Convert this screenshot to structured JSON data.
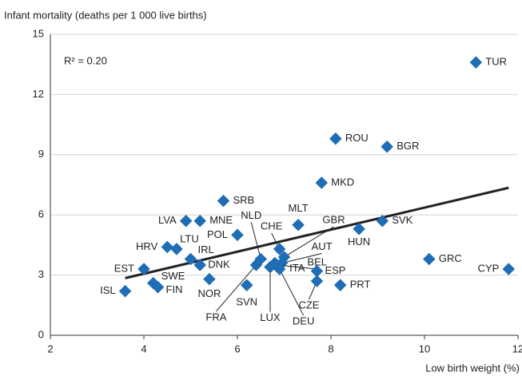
{
  "chart_data": {
    "type": "scatter",
    "y_label": "Infant mortality (deaths per 1 000 live births)",
    "x_label": "Low birth weight (%)",
    "annotation": "R² = 0.20",
    "color": "#1f6db5",
    "trend_color": "#222222",
    "xlim": [
      2,
      12
    ],
    "xticks": [
      2,
      4,
      6,
      8,
      10,
      12
    ],
    "ylim": [
      0,
      15
    ],
    "yticks": [
      0,
      3,
      6,
      9,
      12,
      15
    ],
    "grid": true,
    "labels": [
      "TUR",
      "ROU",
      "BGR",
      "MKD",
      "SRB",
      "LVA",
      "MNE",
      "MLT",
      "SVK",
      "POL",
      "HUN",
      "HRV",
      "LTU",
      "NLD",
      "CHE",
      "GBR",
      "AUT",
      "BEL",
      "IRL",
      "DNK",
      "EST",
      "SWE",
      "FIN",
      "ISL",
      "NOR",
      "SVN",
      "FRA",
      "LUX",
      "DEU",
      "ITA",
      "CZE",
      "ESP",
      "PRT",
      "GRC",
      "CYP"
    ],
    "x": [
      11.1,
      8.1,
      9.2,
      7.8,
      5.7,
      4.9,
      5.2,
      7.3,
      9.1,
      6.0,
      8.6,
      4.5,
      4.7,
      6.5,
      6.9,
      7.0,
      6.95,
      6.85,
      5.0,
      5.2,
      4.0,
      4.2,
      4.3,
      3.6,
      5.4,
      6.2,
      6.4,
      6.7,
      6.9,
      6.8,
      7.7,
      7.7,
      8.2,
      10.1,
      11.8
    ],
    "values": [
      13.6,
      9.8,
      9.4,
      7.6,
      6.7,
      5.7,
      5.7,
      5.5,
      5.7,
      5.0,
      5.3,
      4.4,
      4.3,
      3.8,
      4.3,
      3.9,
      3.6,
      3.5,
      3.8,
      3.5,
      3.3,
      2.6,
      2.4,
      2.2,
      2.8,
      2.5,
      3.5,
      3.4,
      3.3,
      3.6,
      2.7,
      3.2,
      2.5,
      3.8,
      3.3
    ],
    "trendline": {
      "x": [
        3.6,
        11.8
      ],
      "y": [
        2.85,
        7.35
      ]
    }
  }
}
